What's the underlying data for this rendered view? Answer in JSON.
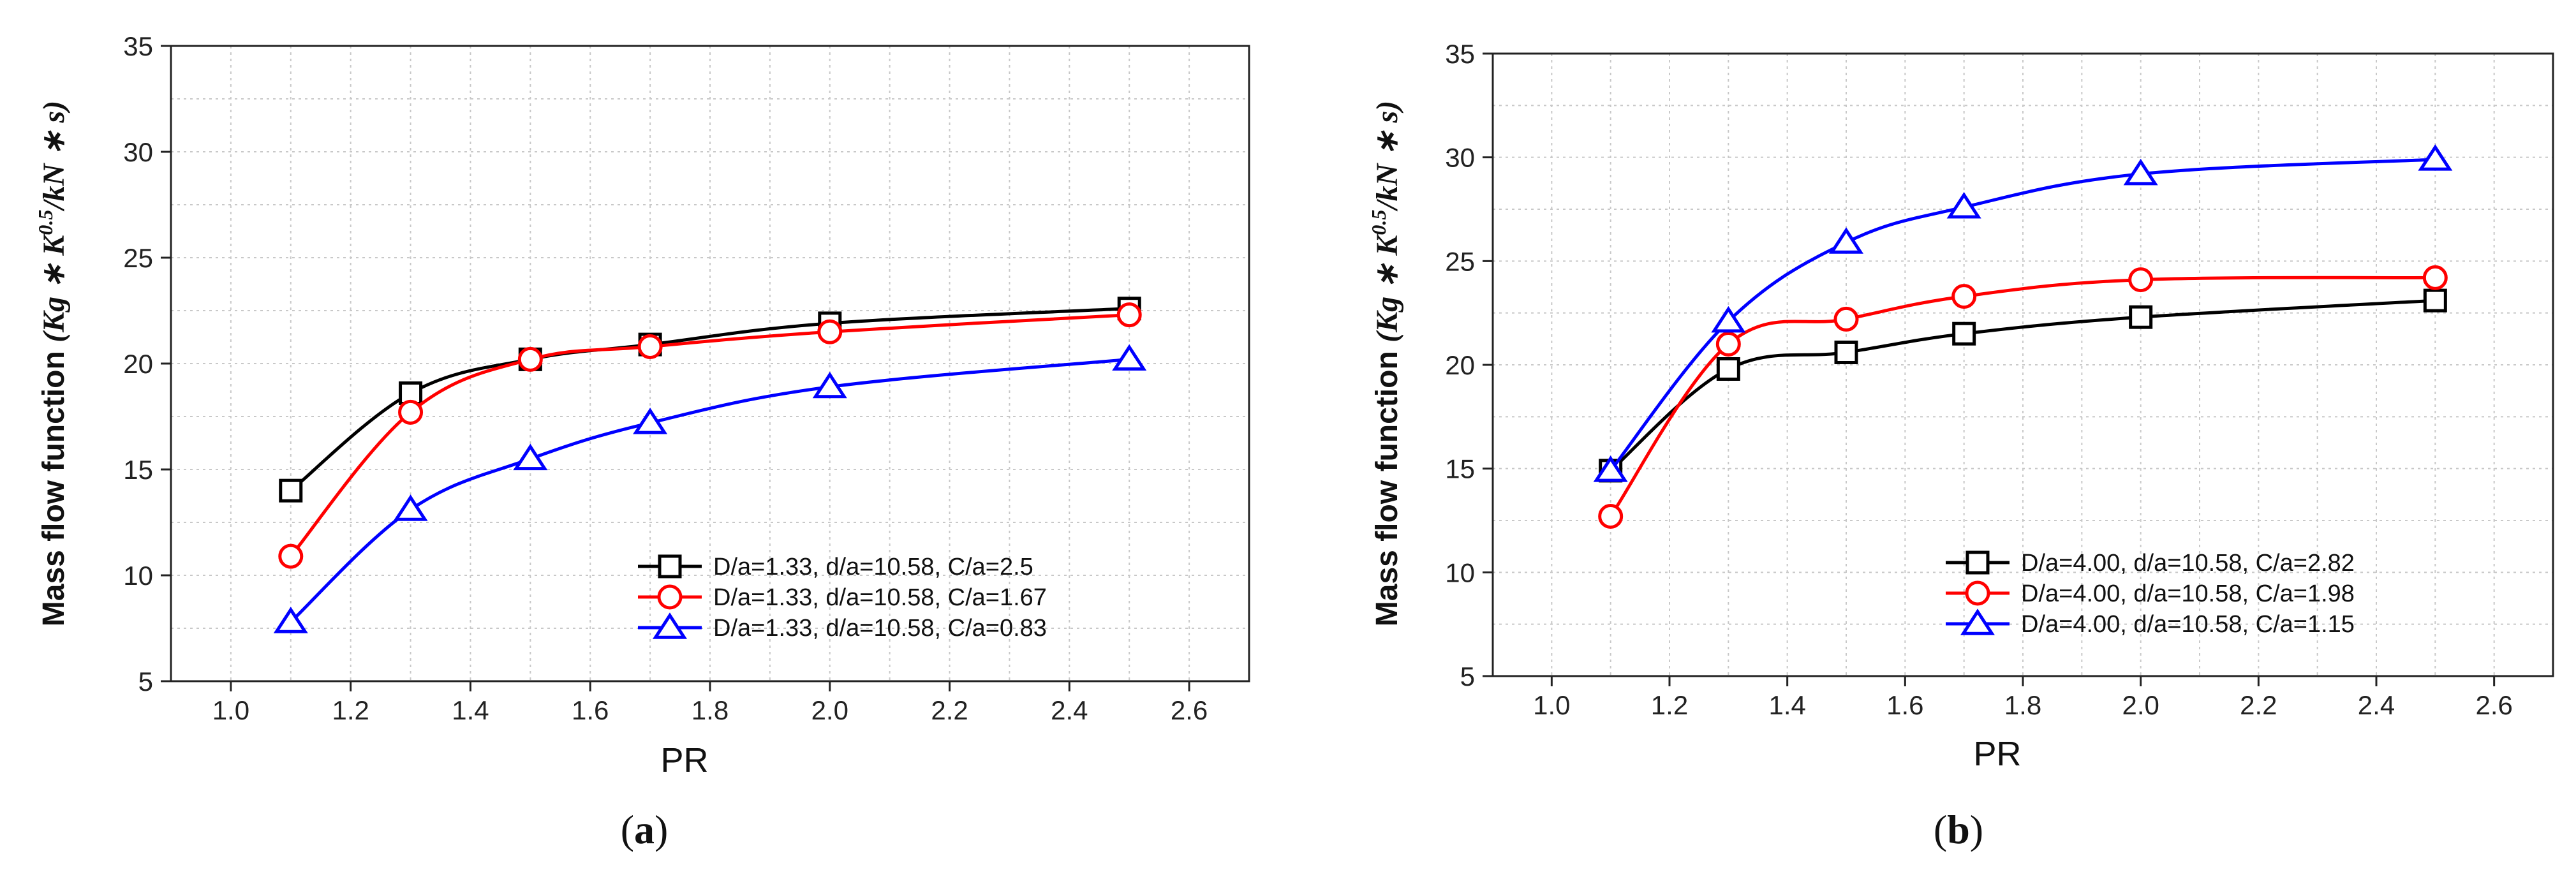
{
  "chart_data": [
    {
      "type": "line",
      "panel_label_prefix": "(",
      "panel_label_letter": "a",
      "panel_label_suffix": ")",
      "xlabel": "PR",
      "ylabel_text": "Mass flow function",
      "ylabel_units": "(Kg ∗ K",
      "ylabel_exp": "0.5",
      "ylabel_tail": "/kN ∗ s)",
      "xlim": [
        0.9,
        2.7
      ],
      "ylim": [
        5,
        35
      ],
      "xticks": [
        1.0,
        1.2,
        1.4,
        1.6,
        1.8,
        2.0,
        2.2,
        2.4,
        2.6
      ],
      "xtick_labels": [
        "1.0",
        "1.2",
        "1.4",
        "1.6",
        "1.8",
        "2.0",
        "2.2",
        "2.4",
        "2.6"
      ],
      "yticks": [
        5,
        10,
        15,
        20,
        25,
        30,
        35
      ],
      "ytick_labels": [
        "5",
        "10",
        "15",
        "20",
        "25",
        "30",
        "35"
      ],
      "grid": true,
      "legend_position": "bottom-right",
      "x": [
        1.1,
        1.3,
        1.5,
        1.7,
        2.0,
        2.5
      ],
      "series": [
        {
          "name": "D/a=1.33, d/a=10.58, C/a=2.5",
          "color": "#000000",
          "marker": "square",
          "values": [
            14.0,
            18.6,
            20.2,
            20.9,
            21.9,
            22.6
          ]
        },
        {
          "name": "D/a=1.33, d/a=10.58, C/a=1.67",
          "color": "#ff0000",
          "marker": "circle",
          "values": [
            10.9,
            17.7,
            20.2,
            20.8,
            21.5,
            22.3
          ]
        },
        {
          "name": "D/a=1.33, d/a=10.58, C/a=0.83",
          "color": "#0000ff",
          "marker": "triangle",
          "values": [
            7.8,
            13.1,
            15.5,
            17.2,
            18.9,
            20.2
          ]
        }
      ]
    },
    {
      "type": "line",
      "panel_label_prefix": "(",
      "panel_label_letter": "b",
      "panel_label_suffix": ")",
      "xlabel": "PR",
      "ylabel_text": "Mass flow function",
      "ylabel_units": "(Kg ∗ K",
      "ylabel_exp": "0.5",
      "ylabel_tail": "/kN ∗ s)",
      "xlim": [
        0.9,
        2.7
      ],
      "ylim": [
        5,
        35
      ],
      "xticks": [
        1.0,
        1.2,
        1.4,
        1.6,
        1.8,
        2.0,
        2.2,
        2.4,
        2.6
      ],
      "xtick_labels": [
        "1.0",
        "1.2",
        "1.4",
        "1.6",
        "1.8",
        "2.0",
        "2.2",
        "2.4",
        "2.6"
      ],
      "yticks": [
        5,
        10,
        15,
        20,
        25,
        30,
        35
      ],
      "ytick_labels": [
        "5",
        "10",
        "15",
        "20",
        "25",
        "30",
        "35"
      ],
      "grid": true,
      "legend_position": "bottom-right",
      "x": [
        1.1,
        1.3,
        1.5,
        1.7,
        2.0,
        2.5
      ],
      "series": [
        {
          "name": "D/a=4.00, d/a=10.58, C/a=2.82",
          "color": "#000000",
          "marker": "square",
          "values": [
            14.9,
            19.8,
            20.6,
            21.5,
            22.3,
            23.1
          ]
        },
        {
          "name": "D/a=4.00, d/a=10.58, C/a=1.98",
          "color": "#ff0000",
          "marker": "circle",
          "values": [
            12.7,
            21.0,
            22.2,
            23.3,
            24.1,
            24.2
          ]
        },
        {
          "name": "D/a=4.00, d/a=10.58, C/a=1.15",
          "color": "#0000ff",
          "marker": "triangle",
          "values": [
            14.9,
            22.1,
            25.9,
            27.6,
            29.2,
            29.9
          ]
        }
      ]
    }
  ]
}
